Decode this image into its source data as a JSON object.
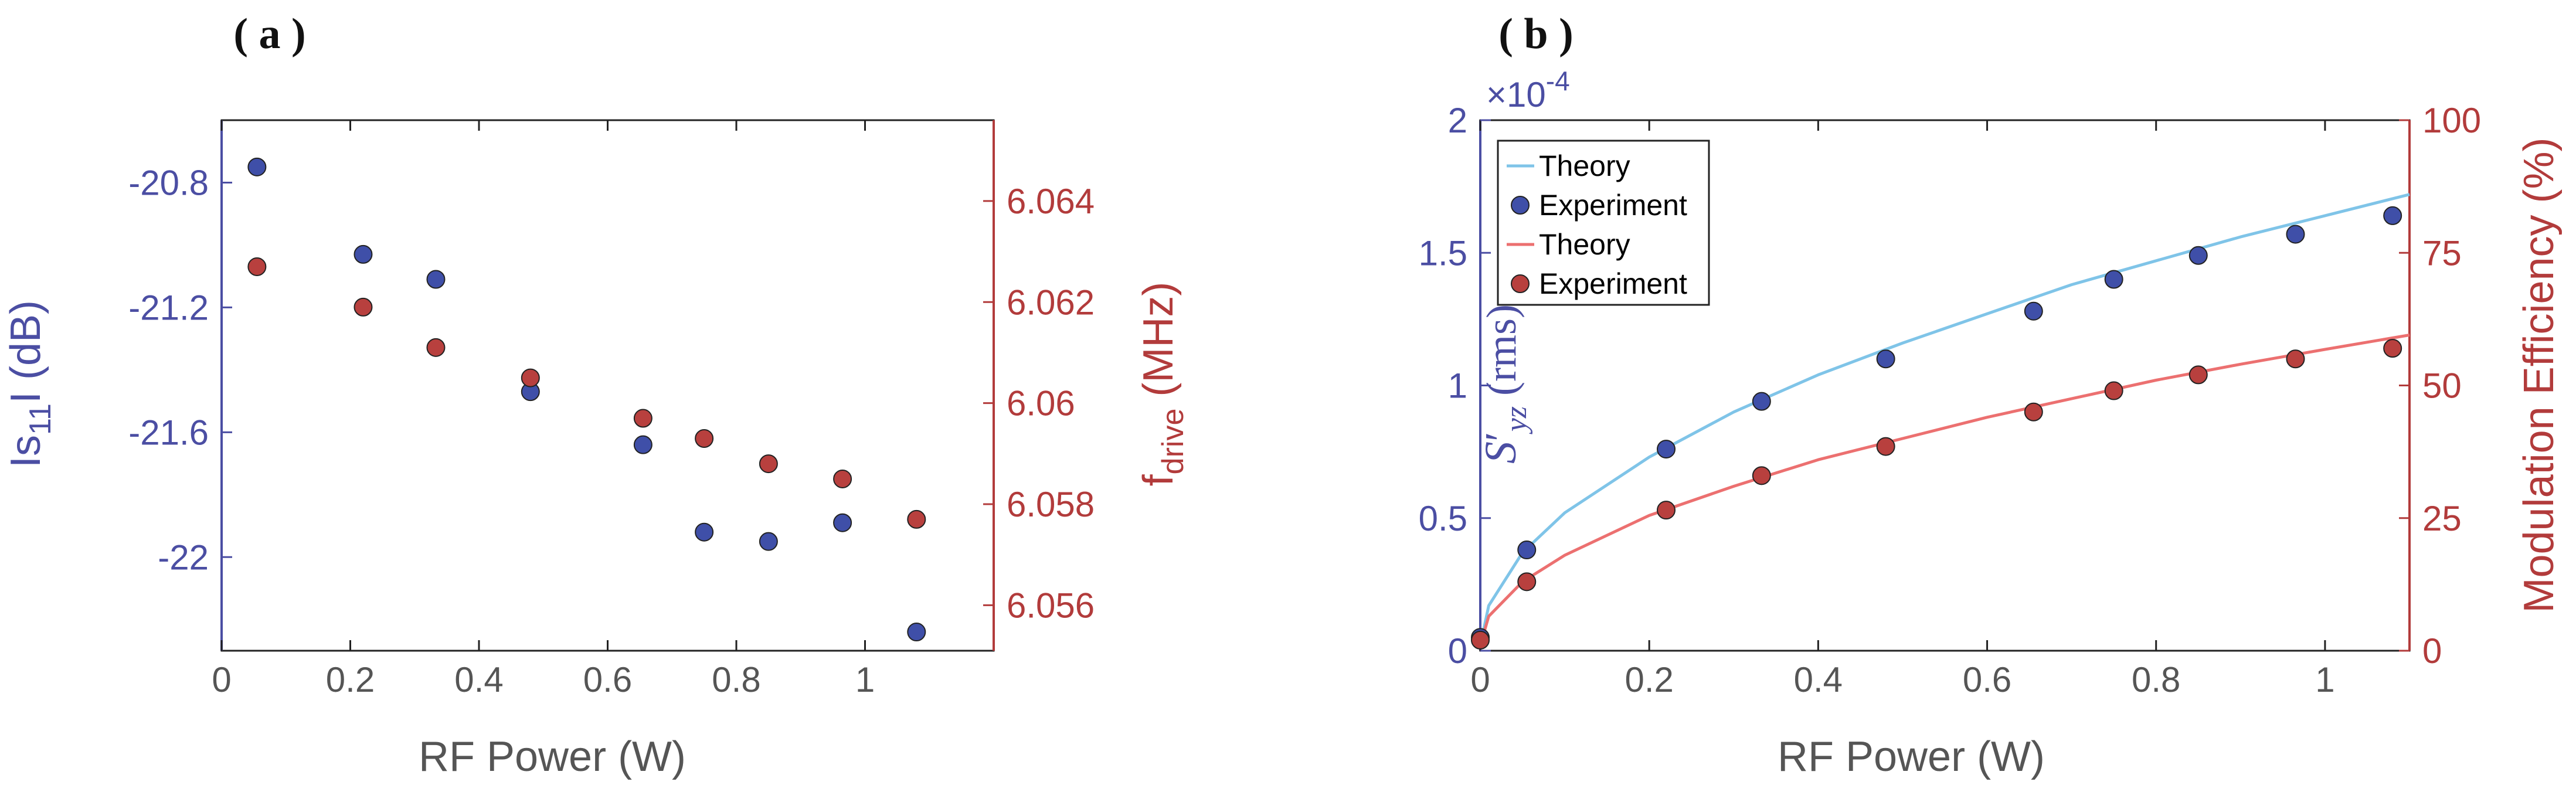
{
  "colors": {
    "left_axis": "#4b4ea3",
    "right_axis": "#b23b3b",
    "blue_marker": "#3f4fa8",
    "red_marker": "#b8403e",
    "theory_blue": "#7fc4e8",
    "theory_red": "#ec7070",
    "axis_black": "#222222",
    "tick_gray": "#555555"
  },
  "chart_data": [
    {
      "type": "scatter",
      "panel_label": "( a )",
      "xlabel": "RF Power (W)",
      "xlim": [
        0,
        1.2
      ],
      "xticks": [
        0,
        0.2,
        0.4,
        0.6,
        0.8,
        1
      ],
      "xtick_labels": [
        "0",
        "0.2",
        "0.4",
        "0.6",
        "0.8",
        "1"
      ],
      "ylabel_left": "|s11| (dB)",
      "ylabel_left_parts": [
        "Is",
        "11",
        "I (dB)"
      ],
      "ylim_left": [
        -22.3,
        -20.6
      ],
      "yticks_left": [
        -20.8,
        -21.2,
        -21.6,
        -22
      ],
      "ytick_labels_left": [
        "-20.8",
        "-21.2",
        "-21.6",
        "-22"
      ],
      "ylabel_right": "f_drive (MHz)",
      "ylabel_right_parts": [
        "f",
        "drive",
        " (MHz)"
      ],
      "ylim_right": [
        6.0551,
        6.0656
      ],
      "yticks_right": [
        6.056,
        6.058,
        6.06,
        6.062,
        6.064
      ],
      "ytick_labels_right": [
        "6.056",
        "6.058",
        "6.06",
        "6.062",
        "6.064"
      ],
      "series": [
        {
          "axis": "left",
          "color": "blue",
          "x": [
            0.055,
            0.22,
            0.333,
            0.48,
            0.655,
            0.75,
            0.85,
            0.965,
            1.08
          ],
          "y": [
            -20.75,
            -21.03,
            -21.11,
            -21.47,
            -21.64,
            -21.92,
            -21.95,
            -21.89,
            -22.24
          ]
        },
        {
          "axis": "right",
          "color": "red",
          "x": [
            0.055,
            0.22,
            0.333,
            0.48,
            0.655,
            0.75,
            0.85,
            0.965,
            1.08
          ],
          "y": [
            6.0627,
            6.0619,
            6.0611,
            6.0605,
            6.0597,
            6.0593,
            6.0588,
            6.0585,
            6.0577
          ]
        }
      ]
    },
    {
      "type": "line",
      "panel_label": "( b )",
      "xlabel": "RF Power (W)",
      "xlim": [
        0,
        1.1
      ],
      "xticks": [
        0,
        0.2,
        0.4,
        0.6,
        0.8,
        1
      ],
      "xtick_labels": [
        "0",
        "0.2",
        "0.4",
        "0.6",
        "0.8",
        "1"
      ],
      "ylabel_left": "S'_yz (rms)",
      "ylabel_left_parts": [
        "S",
        "′",
        "yz",
        " (rms)"
      ],
      "ylim_left": [
        0,
        2
      ],
      "yticks_left": [
        0,
        0.5,
        1,
        1.5,
        2
      ],
      "ytick_labels_left": [
        "0",
        "0.5",
        "1",
        "1.5",
        "2"
      ],
      "y_exponent_label": [
        "×10",
        "-4"
      ],
      "ylabel_right": "Modulation Efficiency (%)",
      "ylim_right": [
        0,
        100
      ],
      "yticks_right": [
        0,
        25,
        50,
        75,
        100
      ],
      "ytick_labels_right": [
        "0",
        "25",
        "50",
        "75",
        "100"
      ],
      "legend_position": "top-left",
      "series": [
        {
          "name": "Theory",
          "kind": "line",
          "axis": "left",
          "color": "theory_blue",
          "x": [
            0,
            0.01,
            0.05,
            0.1,
            0.2,
            0.3,
            0.4,
            0.5,
            0.6,
            0.7,
            0.8,
            0.9,
            1.0,
            1.1
          ],
          "y": [
            0.02,
            0.17,
            0.37,
            0.52,
            0.73,
            0.9,
            1.04,
            1.16,
            1.27,
            1.38,
            1.47,
            1.56,
            1.64,
            1.72
          ]
        },
        {
          "name": "Experiment",
          "kind": "marker",
          "axis": "left",
          "color": "blue",
          "x": [
            0,
            0.055,
            0.22,
            0.333,
            0.48,
            0.655,
            0.75,
            0.85,
            0.965,
            1.08
          ],
          "y": [
            0.05,
            0.38,
            0.76,
            0.94,
            1.1,
            1.28,
            1.4,
            1.49,
            1.57,
            1.64
          ]
        },
        {
          "name": "Theory",
          "kind": "line",
          "axis": "right",
          "color": "theory_red",
          "x": [
            0,
            0.01,
            0.05,
            0.1,
            0.2,
            0.3,
            0.4,
            0.5,
            0.6,
            0.7,
            0.8,
            0.9,
            1.0,
            1.1
          ],
          "y": [
            1,
            6.5,
            13,
            18,
            25.5,
            31,
            36,
            40,
            44,
            47.5,
            51,
            54,
            56.8,
            59.5
          ]
        },
        {
          "name": "Experiment",
          "kind": "marker",
          "axis": "right",
          "color": "red",
          "x": [
            0,
            0.055,
            0.22,
            0.333,
            0.48,
            0.655,
            0.75,
            0.85,
            0.965,
            1.08
          ],
          "y": [
            2,
            13,
            26.5,
            33,
            38.5,
            45,
            49,
            52,
            55,
            57
          ]
        }
      ]
    }
  ]
}
